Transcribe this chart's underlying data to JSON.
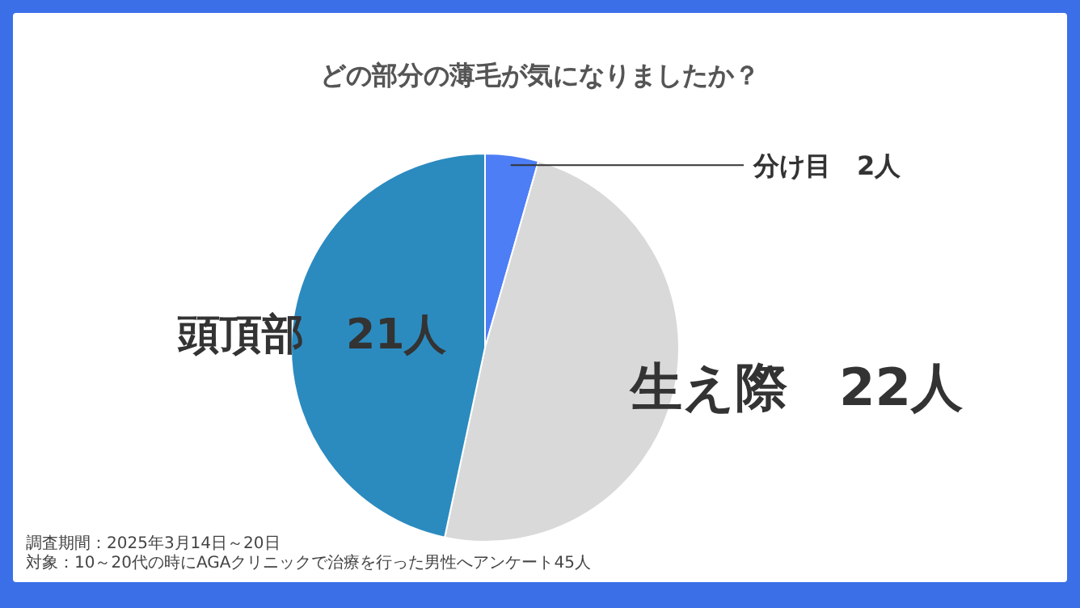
{
  "chart_data": {
    "type": "pie",
    "title": "どの部分の薄毛が気になりましたか？",
    "categories": [
      "分け目",
      "生え際",
      "頭頂部"
    ],
    "values": [
      2,
      22,
      21
    ],
    "colors": [
      "#4d7ef5",
      "#d9d9d9",
      "#2b8bbf"
    ],
    "value_labels": [
      "2人",
      "22人",
      "21人"
    ],
    "annotations": [
      "調査期間：2025年3月14日～20日",
      "対象：10～20代の時にAGAクリニックで治療を行った男性へアンケート45人"
    ]
  }
}
